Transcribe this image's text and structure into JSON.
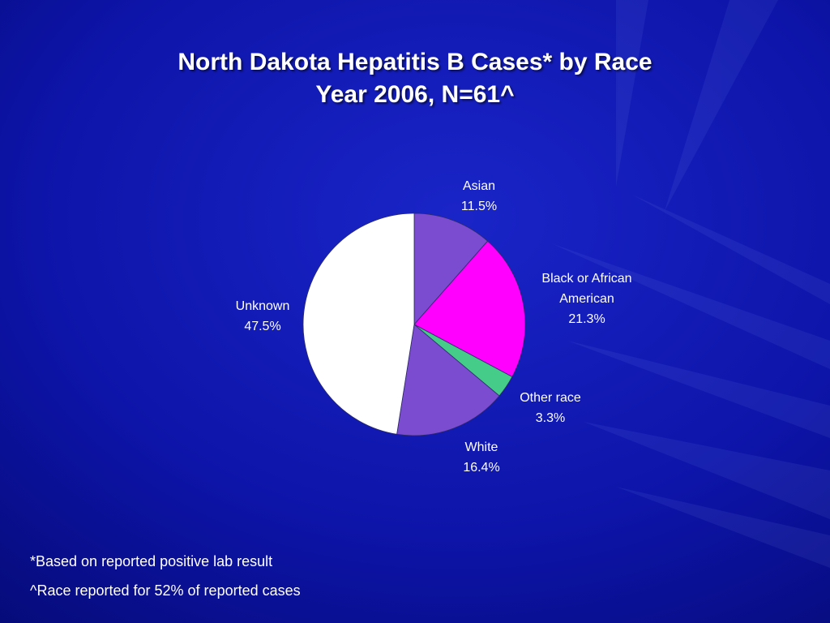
{
  "title": {
    "line1": "North Dakota Hepatitis B Cases* by Race",
    "line2": "Year 2006, N=61^"
  },
  "footnotes": [
    "*Based on reported positive lab result",
    "^Race reported for 52% of reported cases"
  ],
  "colors": {
    "background": "#0a0f9a",
    "asian": "#7b4bd0",
    "black_or_african_american": "#ff00ff",
    "other_race": "#44cc88",
    "white": "#7b4bd0",
    "unknown": "#ffffff",
    "label_text": "#ffffff"
  },
  "chart_data": {
    "type": "pie",
    "title": "North Dakota Hepatitis B Cases* by Race",
    "subtitle": "Year 2006, N=61^",
    "start_angle_deg": 0,
    "direction": "clockwise",
    "slices": [
      {
        "label_lines": [
          "Asian"
        ],
        "value": 11.5,
        "value_label": "11.5%",
        "color": "#7b4bd0"
      },
      {
        "label_lines": [
          "Black or African",
          "American"
        ],
        "value": 21.3,
        "value_label": "21.3%",
        "color": "#ff00ff"
      },
      {
        "label_lines": [
          "Other race"
        ],
        "value": 3.3,
        "value_label": "3.3%",
        "color": "#44cc88"
      },
      {
        "label_lines": [
          "White"
        ],
        "value": 16.4,
        "value_label": "16.4%",
        "color": "#7b4bd0"
      },
      {
        "label_lines": [
          "Unknown"
        ],
        "value": 47.5,
        "value_label": "47.5%",
        "color": "#ffffff"
      }
    ],
    "legend": "none"
  }
}
